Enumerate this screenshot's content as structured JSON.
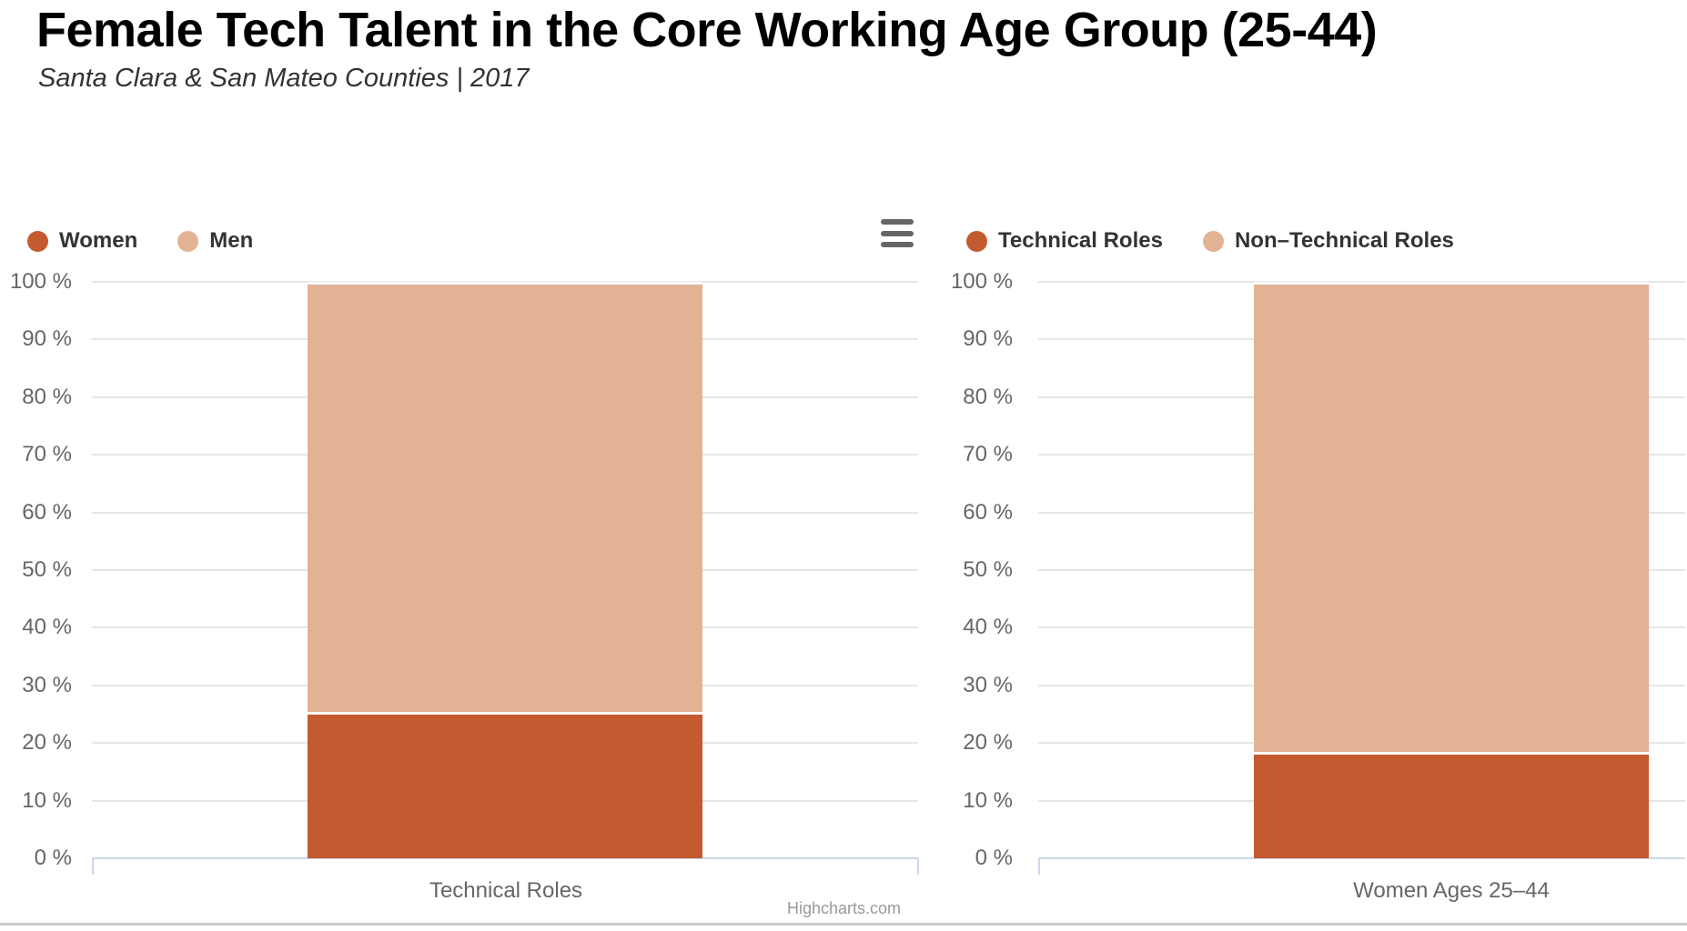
{
  "header": {
    "title": "Female Tech Talent in the Core Working Age Group (25-44)",
    "subtitle": "Santa Clara & San Mateo Counties | 2017"
  },
  "credits": "Highcharts.com",
  "colors": {
    "primary": "#C45A2F",
    "secondary": "#E2B294",
    "grid_line": "#e6e6e6",
    "axis_line": "#ccd6eb",
    "axis_label": "#666666",
    "legend_text": "#333333",
    "credits_text": "#999999",
    "menu_icon": "#666666"
  },
  "chart_data": [
    {
      "type": "bar",
      "stacking": "percent",
      "title": "",
      "categories": [
        "Technical Roles"
      ],
      "series": [
        {
          "name": "Women",
          "values": [
            25
          ],
          "color": "#C45A2F"
        },
        {
          "name": "Men",
          "values": [
            75
          ],
          "color": "#E2B294"
        }
      ],
      "xlabel": "",
      "ylabel": "",
      "ylim": [
        0,
        100
      ],
      "ytick_values": [
        0,
        10,
        20,
        30,
        40,
        50,
        60,
        70,
        80,
        90,
        100
      ],
      "ytick_labels": [
        "0 %",
        "10 %",
        "20 %",
        "30 %",
        "40 %",
        "50 %",
        "60 %",
        "70 %",
        "80 %",
        "90 %",
        "100 %"
      ],
      "grid": true,
      "legend_position": "top-left"
    },
    {
      "type": "bar",
      "stacking": "percent",
      "title": "",
      "categories": [
        "Women Ages 25–44"
      ],
      "series": [
        {
          "name": "Technical Roles",
          "values": [
            18
          ],
          "color": "#C45A2F"
        },
        {
          "name": "Non–Technical Roles",
          "values": [
            82
          ],
          "color": "#E2B294"
        }
      ],
      "xlabel": "",
      "ylabel": "",
      "ylim": [
        0,
        100
      ],
      "ytick_values": [
        0,
        10,
        20,
        30,
        40,
        50,
        60,
        70,
        80,
        90,
        100
      ],
      "ytick_labels": [
        "0 %",
        "10 %",
        "20 %",
        "30 %",
        "40 %",
        "50 %",
        "60 %",
        "70 %",
        "80 %",
        "90 %",
        "100 %"
      ],
      "grid": true,
      "legend_position": "top-left"
    }
  ]
}
